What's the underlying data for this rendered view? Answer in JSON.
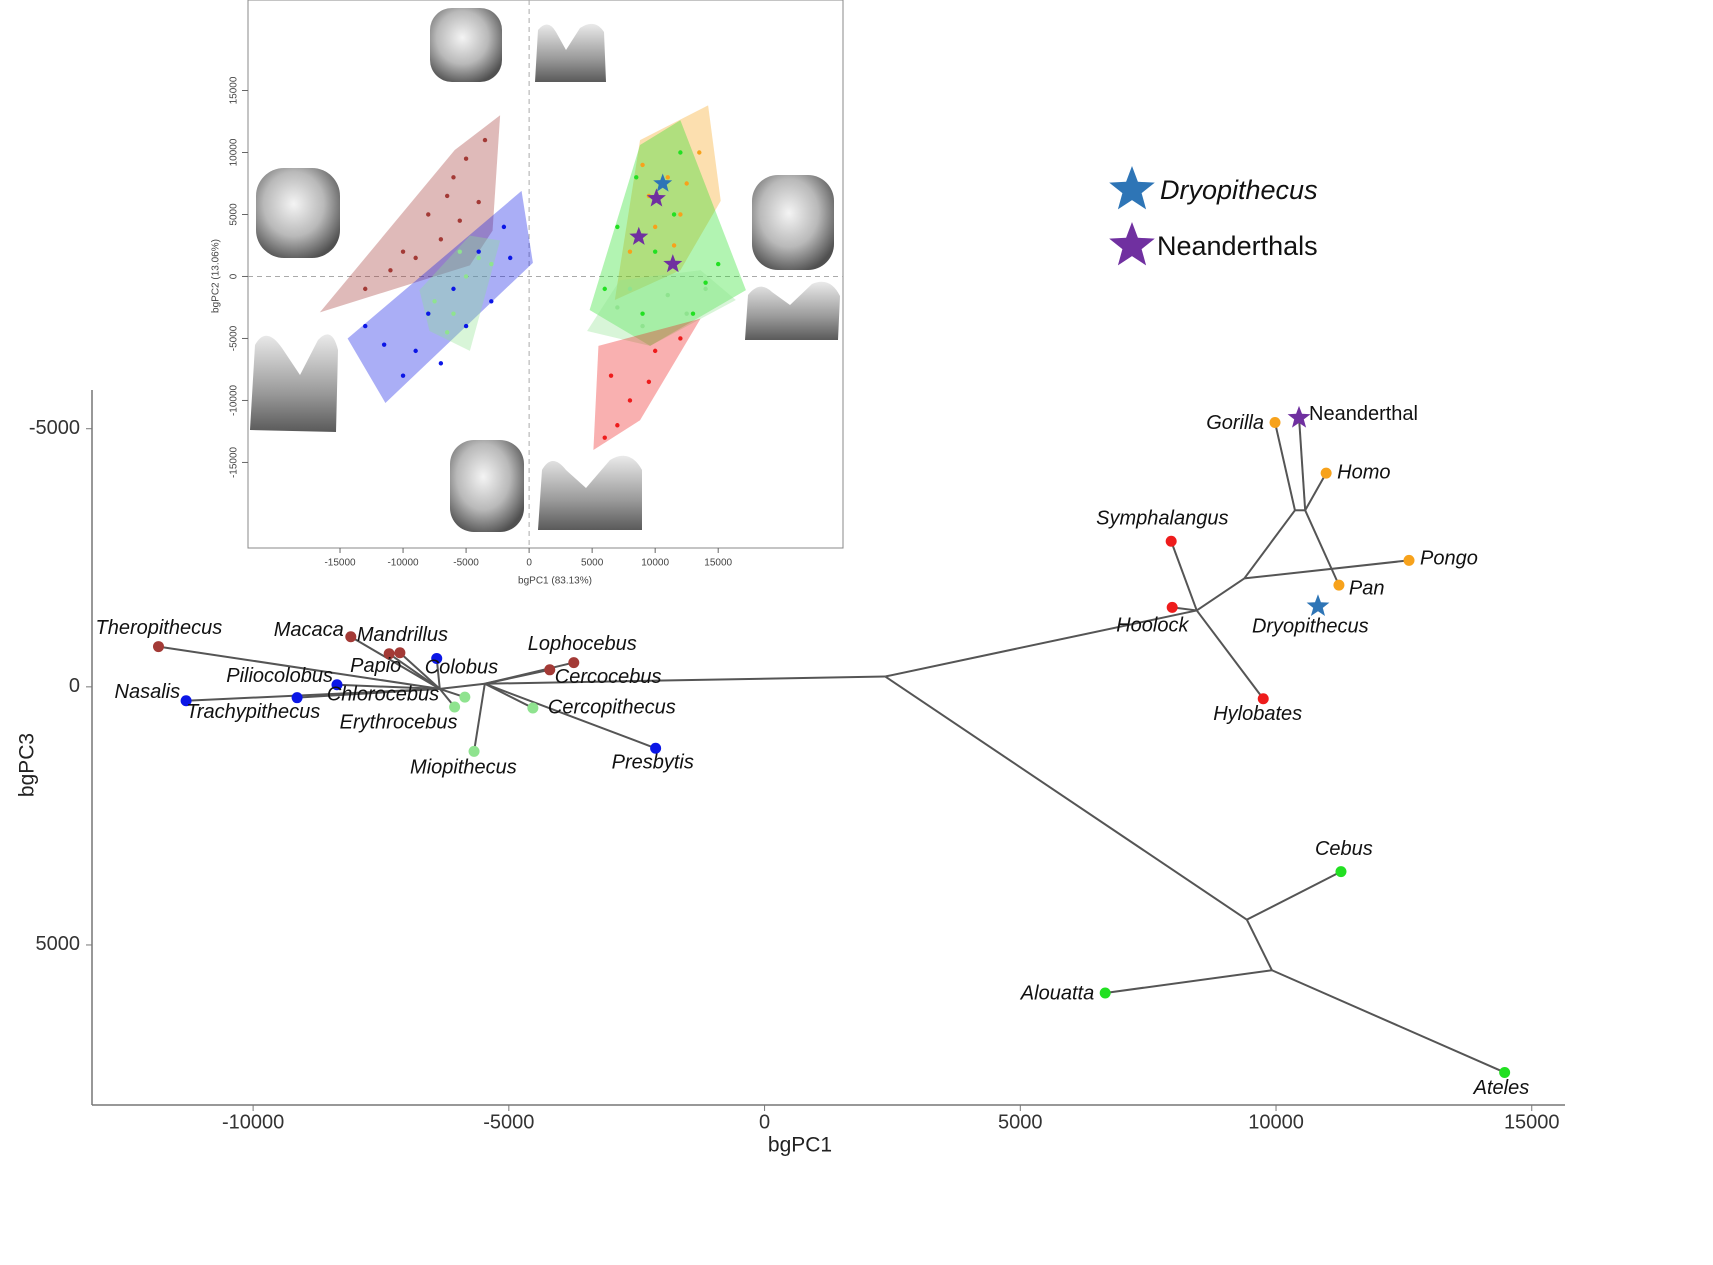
{
  "chart_data": [
    {
      "type": "tree",
      "xlabel": "bgPC1",
      "ylabel": "bgPC3",
      "xlim": [
        -13150,
        15650
      ],
      "ylim": [
        -5750,
        8100
      ],
      "y_inverted": true,
      "xticks": [
        -10000,
        -5000,
        0,
        5000,
        10000,
        15000
      ],
      "yticks": [
        -5000,
        0,
        5000
      ],
      "taxa": [
        {
          "name": "Theropithecus",
          "color": "#a33a36",
          "x": -11850,
          "y": -780
        },
        {
          "name": "Macaca",
          "color": "#a33a36",
          "x": -8090,
          "y": -970
        },
        {
          "name": "Papio",
          "color": "#a33a36",
          "x": -7340,
          "y": -640
        },
        {
          "name": "Mandrillus",
          "color": "#a33a36",
          "x": -7130,
          "y": -660
        },
        {
          "name": "Lophocebus",
          "color": "#a33a36",
          "x": -3730,
          "y": -470
        },
        {
          "name": "Cercocebus",
          "color": "#a33a36",
          "x": -4200,
          "y": -330
        },
        {
          "name": "Colobus",
          "color": "#0b16e6",
          "x": -6410,
          "y": -550
        },
        {
          "name": "Piliocolobus",
          "color": "#0b16e6",
          "x": -8360,
          "y": -40
        },
        {
          "name": "Nasalis",
          "color": "#0b16e6",
          "x": -11310,
          "y": 270
        },
        {
          "name": "Trachypithecus",
          "color": "#0b16e6",
          "x": -9140,
          "y": 210
        },
        {
          "name": "Presbytis",
          "color": "#0b16e6",
          "x": -2130,
          "y": 1190
        },
        {
          "name": "Chlorocebus",
          "color": "#8fe38f",
          "x": -5860,
          "y": 200
        },
        {
          "name": "Erythrocebus",
          "color": "#8fe38f",
          "x": -6060,
          "y": 390
        },
        {
          "name": "Cercopithecus",
          "color": "#8fe38f",
          "x": -4530,
          "y": 410
        },
        {
          "name": "Miopithecus",
          "color": "#8fe38f",
          "x": -5680,
          "y": 1250
        },
        {
          "name": "Gorilla",
          "color": "#f7a21b",
          "x": 9980,
          "y": -5120
        },
        {
          "name": "Homo",
          "color": "#f7a21b",
          "x": 10980,
          "y": -4140
        },
        {
          "name": "Pongo",
          "color": "#f7a21b",
          "x": 12600,
          "y": -2450
        },
        {
          "name": "Pan",
          "color": "#f7a21b",
          "x": 11230,
          "y": -1970
        },
        {
          "name": "Dryopithecus",
          "color": "#2e75b6",
          "x": 10820,
          "y": -1560,
          "marker": "star"
        },
        {
          "name": "Neanderthal",
          "color": "#7030a0",
          "x": 10450,
          "y": -5210,
          "marker": "star",
          "italic": false
        },
        {
          "name": "Symphalangus",
          "color": "#ee1c1c",
          "x": 7950,
          "y": -2820
        },
        {
          "name": "Hoolock",
          "color": "#ee1c1c",
          "x": 7970,
          "y": -1540
        },
        {
          "name": "Hylobates",
          "color": "#ee1c1c",
          "x": 9750,
          "y": 230
        },
        {
          "name": "Cebus",
          "color": "#22e022",
          "x": 11270,
          "y": 3580
        },
        {
          "name": "Alouatta",
          "color": "#22e022",
          "x": 6660,
          "y": 5930
        },
        {
          "name": "Ateles",
          "color": "#22e022",
          "x": 14470,
          "y": 7470
        }
      ],
      "branches": [
        {
          "x": [
            2360,
            -5470
          ],
          "y": [
            -200,
            -60
          ]
        },
        {
          "x": [
            2360,
            8450
          ],
          "y": [
            -200,
            -1480
          ]
        },
        {
          "x": [
            8450,
            9380
          ],
          "y": [
            -1480,
            -2100
          ]
        },
        {
          "x": [
            8450,
            7950
          ],
          "y": [
            -1480,
            -2820
          ]
        },
        {
          "x": [
            8450,
            7970
          ],
          "y": [
            -1480,
            -1540
          ]
        },
        {
          "x": [
            8450,
            9750
          ],
          "y": [
            -1480,
            230
          ]
        },
        {
          "x": [
            9380,
            10370
          ],
          "y": [
            -2100,
            -3420
          ]
        },
        {
          "x": [
            10370,
            9980
          ],
          "y": [
            -3420,
            -5120
          ]
        },
        {
          "x": [
            10370,
            10570
          ],
          "y": [
            -3420,
            -3420
          ]
        },
        {
          "x": [
            10570,
            10980
          ],
          "y": [
            -3420,
            -4140
          ]
        },
        {
          "x": [
            10570,
            10450
          ],
          "y": [
            -3420,
            -5210
          ]
        },
        {
          "x": [
            9380,
            12600
          ],
          "y": [
            -2100,
            -2450
          ]
        },
        {
          "x": [
            10570,
            11230
          ],
          "y": [
            -3420,
            -1970
          ]
        },
        {
          "x": [
            2360,
            9430
          ],
          "y": [
            -200,
            4510
          ]
        },
        {
          "x": [
            9430,
            11270
          ],
          "y": [
            4510,
            3580
          ]
        },
        {
          "x": [
            9430,
            9920
          ],
          "y": [
            4510,
            5490
          ]
        },
        {
          "x": [
            9920,
            6660
          ],
          "y": [
            5490,
            5930
          ]
        },
        {
          "x": [
            9920,
            14470
          ],
          "y": [
            5490,
            7470
          ]
        },
        {
          "x": [
            -5470,
            -3730
          ],
          "y": [
            -60,
            -470
          ]
        },
        {
          "x": [
            -5470,
            -4200
          ],
          "y": [
            -60,
            -330
          ]
        },
        {
          "x": [
            -5470,
            -2130
          ],
          "y": [
            -60,
            1190
          ]
        },
        {
          "x": [
            -5470,
            -5680
          ],
          "y": [
            -60,
            1250
          ]
        },
        {
          "x": [
            -5470,
            -4530
          ],
          "y": [
            -60,
            410
          ]
        },
        {
          "x": [
            -5470,
            -6350
          ],
          "y": [
            -60,
            40
          ]
        },
        {
          "x": [
            -6350,
            -11850
          ],
          "y": [
            40,
            -780
          ]
        },
        {
          "x": [
            -6350,
            -8090
          ],
          "y": [
            40,
            -970
          ]
        },
        {
          "x": [
            -6350,
            -7130
          ],
          "y": [
            40,
            -660
          ]
        },
        {
          "x": [
            -6350,
            -7340
          ],
          "y": [
            40,
            -640
          ]
        },
        {
          "x": [
            -6350,
            -6410
          ],
          "y": [
            40,
            -550
          ]
        },
        {
          "x": [
            -6350,
            -8360
          ],
          "y": [
            40,
            -40
          ]
        },
        {
          "x": [
            -6350,
            -11310
          ],
          "y": [
            40,
            270
          ]
        },
        {
          "x": [
            -6350,
            -9140
          ],
          "y": [
            40,
            210
          ]
        },
        {
          "x": [
            -6350,
            -5860
          ],
          "y": [
            40,
            200
          ]
        },
        {
          "x": [
            -6350,
            -6060
          ],
          "y": [
            40,
            390
          ]
        }
      ],
      "legend": [
        {
          "label": "Dryopithecus",
          "color": "#2e75b6",
          "italic": true
        },
        {
          "label": "Neanderthals",
          "color": "#7030a0",
          "italic": false
        }
      ]
    },
    {
      "type": "scatter",
      "xlabel": "bgPC1 (83.13%)",
      "ylabel": "bgPC2 (13.06%)",
      "xlim": [
        -22300,
        24900
      ],
      "ylim": [
        -21900,
        22300
      ],
      "xticks": [
        -15000,
        -10000,
        -5000,
        0,
        5000,
        10000,
        15000
      ],
      "yticks": [
        -15000,
        -10000,
        -5000,
        0,
        5000,
        10000,
        15000
      ],
      "zero_lines": true,
      "groups": [
        {
          "color": "#a33a36",
          "hull": {
            "x": [
              -16600,
              -5900,
              -2300,
              -2900,
              -4700
            ],
            "y": [
              -2900,
              10200,
              13000,
              3700,
              900
            ]
          },
          "points": {
            "x": [
              -13000,
              -10000,
              -8000,
              -6000,
              -5000,
              -4000,
              -7000,
              -9000,
              -3500,
              -5500,
              -11000,
              -6500
            ],
            "y": [
              -1000,
              2000,
              5000,
              8000,
              9500,
              6000,
              3000,
              1500,
              11000,
              4500,
              500,
              6500
            ]
          }
        },
        {
          "color": "#0b16e6",
          "hull": {
            "x": [
              -14400,
              -600,
              300,
              -11400
            ],
            "y": [
              -5000,
              6900,
              1100,
              -10200
            ]
          },
          "points": {
            "x": [
              -13000,
              -10000,
              -8000,
              -6000,
              -4000,
              -2000,
              -9000,
              -11500,
              -5000,
              -1500,
              -7000,
              -3000
            ],
            "y": [
              -4000,
              -8000,
              -3000,
              -1000,
              2000,
              4000,
              -6000,
              -5500,
              -4000,
              1500,
              -7000,
              -2000
            ]
          }
        },
        {
          "color": "#8fe38f",
          "hull": {
            "x": [
              -8700,
              -4700,
              -2300,
              -4700,
              -7900
            ],
            "y": [
              -1100,
              3300,
              2900,
              -6000,
              -4400
            ]
          },
          "points": {
            "x": [
              -7500,
              -6000,
              -5000,
              -4000,
              -6500,
              -5500,
              -3000
            ],
            "y": [
              -2000,
              -3000,
              0,
              1500,
              -4500,
              2000,
              1000
            ]
          }
        },
        {
          "color": "#f7a21b",
          "hull": {
            "x": [
              8800,
              14200,
              15200,
              12000,
              6800
            ],
            "y": [
              11000,
              13800,
              6100,
              500,
              -1900
            ]
          },
          "points": {
            "x": [
              9000,
              11000,
              12000,
              10000,
              13500,
              8000,
              11500,
              12500,
              9500
            ],
            "y": [
              9000,
              8000,
              5000,
              4000,
              10000,
              2000,
              2500,
              7500,
              6500
            ]
          }
        },
        {
          "color": "#22e022",
          "hull": {
            "x": [
              4800,
              8800,
              12000,
              17200,
              9600
            ],
            "y": [
              -2700,
              10600,
              12600,
              -1100,
              -5600
            ]
          },
          "points": {
            "x": [
              6000,
              8500,
              10000,
              12000,
              14000,
              9000,
              15000,
              7000,
              11500,
              13000
            ],
            "y": [
              -1000,
              8000,
              2000,
              10000,
              -500,
              -3000,
              1000,
              4000,
              5000,
              -3000
            ]
          }
        },
        {
          "color": "#8fe38f",
          "hull": {
            "x": [
              4600,
              7200,
              13600,
              16400,
              9600
            ],
            "y": [
              -4400,
              -300,
              500,
              -1900,
              -5600
            ]
          },
          "points": {
            "x": [
              7000,
              9000,
              11000,
              14000,
              12500,
              8000
            ],
            "y": [
              -2500,
              -4000,
              -1500,
              -1000,
              -3000,
              -1000
            ]
          }
        },
        {
          "color": "#ee1c1c",
          "hull": {
            "x": [
              5100,
              5500,
              13600,
              8800
            ],
            "y": [
              -14000,
              -5600,
              -3400,
              -11600
            ]
          },
          "points": {
            "x": [
              6500,
              8000,
              10000,
              7000,
              9500,
              12000,
              6000
            ],
            "y": [
              -8000,
              -10000,
              -6000,
              -12000,
              -8500,
              -5000,
              -13000
            ]
          }
        }
      ],
      "stars": [
        {
          "color": "#2e75b6",
          "x": 10600,
          "y": 7500
        },
        {
          "color": "#7030a0",
          "x": 10100,
          "y": 6300
        },
        {
          "color": "#7030a0",
          "x": 8700,
          "y": 3200
        },
        {
          "color": "#7030a0",
          "x": 11400,
          "y": 1000
        }
      ]
    }
  ]
}
